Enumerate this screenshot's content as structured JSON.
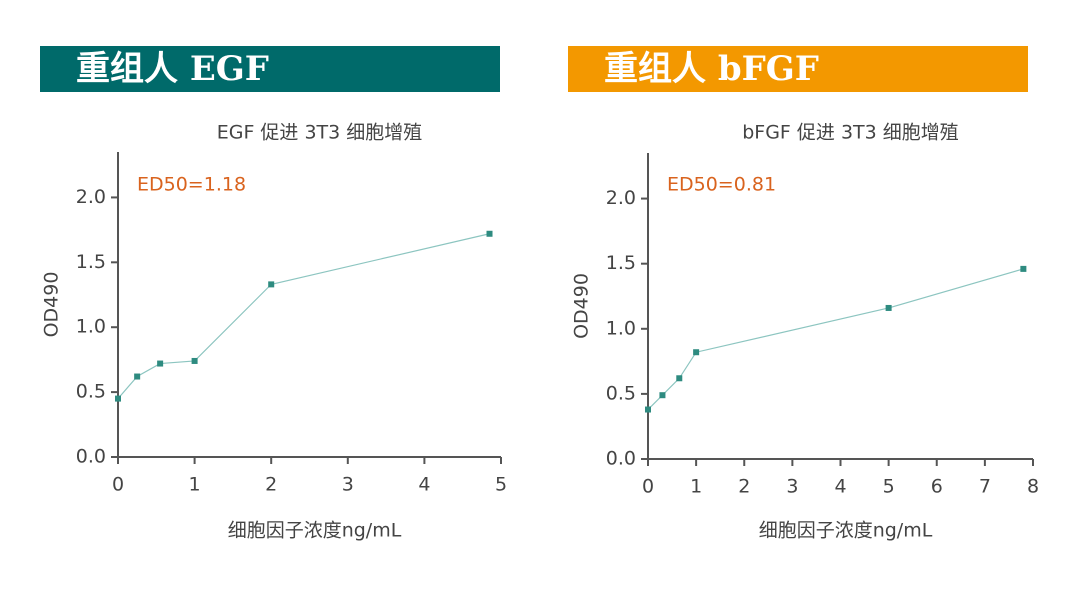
{
  "chart_data": [
    {
      "type": "line",
      "banner": "重组人 EGF",
      "banner_color": "#006a6a",
      "title": "EGF 促进 3T3 细胞增殖",
      "annotation": "ED50=1.18",
      "annotation_color": "#d9631e",
      "xlabel": "细胞因子浓度ng/mL",
      "ylabel": "OD490",
      "x": [
        0,
        0.25,
        0.55,
        1.0,
        2.0,
        4.85
      ],
      "values": [
        0.45,
        0.62,
        0.72,
        0.74,
        1.33,
        1.72
      ],
      "color": "#2e8b80",
      "line_color": "#8cc5c0",
      "xlim": [
        0,
        5
      ],
      "xticks": [
        0,
        1,
        2,
        3,
        4,
        5
      ],
      "ylim": [
        0,
        2.35
      ],
      "yticks": [
        {
          "value": 0,
          "label": "0.0"
        },
        {
          "value": 0.5,
          "label": "0.5"
        },
        {
          "value": 1,
          "label": "1.0"
        },
        {
          "value": 1.5,
          "label": "1.5"
        },
        {
          "value": 2,
          "label": "2.0"
        }
      ]
    },
    {
      "type": "line",
      "banner": "重组人 bFGF",
      "banner_color": "#f39800",
      "title": "bFGF 促进 3T3 细胞增殖",
      "annotation": "ED50=0.81",
      "annotation_color": "#d9631e",
      "xlabel": "细胞因子浓度ng/mL",
      "ylabel": "OD490",
      "x": [
        0,
        0.3,
        0.65,
        1.0,
        5.0,
        7.8
      ],
      "values": [
        0.38,
        0.49,
        0.62,
        0.82,
        1.16,
        1.46
      ],
      "color": "#2e8b80",
      "line_color": "#8cc5c0",
      "xlim": [
        0,
        8
      ],
      "xticks": [
        0,
        1,
        2,
        3,
        4,
        5,
        6,
        7,
        8
      ],
      "ylim": [
        0,
        2.35
      ],
      "yticks": [
        {
          "value": 0,
          "label": "0.0"
        },
        {
          "value": 0.5,
          "label": "0.5"
        },
        {
          "value": 1,
          "label": "1.0"
        },
        {
          "value": 1.5,
          "label": "1.5"
        },
        {
          "value": 2,
          "label": "2.0"
        }
      ]
    }
  ]
}
